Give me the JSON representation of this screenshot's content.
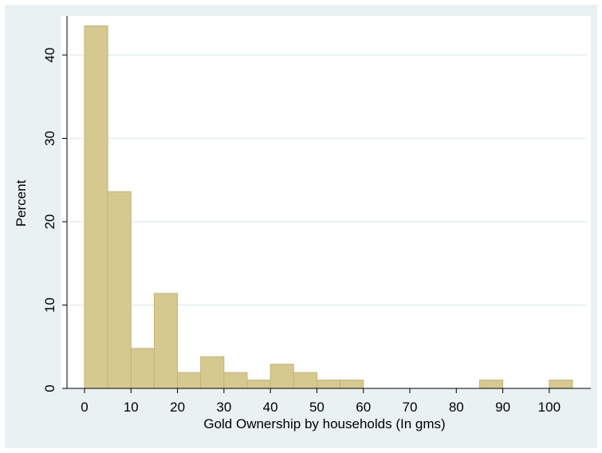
{
  "colors": {
    "outer_background": "#eaf1f3",
    "plot_background": "#ffffff",
    "bar_fill": "#d6c98f",
    "bar_stroke": "#c2b47a",
    "gridline": "#eaf1f3",
    "axis": "#000000"
  },
  "chart_data": {
    "type": "bar",
    "subtype": "histogram",
    "title": "",
    "xlabel": "Gold Ownership by households (In gms)",
    "ylabel": "Percent",
    "xlim": [
      -4,
      106
    ],
    "ylim": [
      0,
      44.5
    ],
    "xticks": [
      0,
      10,
      20,
      30,
      40,
      50,
      60,
      70,
      80,
      90,
      100
    ],
    "yticks": [
      0,
      10,
      20,
      30,
      40
    ],
    "grid": true,
    "legend": "none",
    "bin_width": 5,
    "bins": [
      {
        "start": 0,
        "end": 5,
        "value": 43.5
      },
      {
        "start": 5,
        "end": 10,
        "value": 23.6
      },
      {
        "start": 10,
        "end": 15,
        "value": 4.8
      },
      {
        "start": 15,
        "end": 20,
        "value": 11.4
      },
      {
        "start": 20,
        "end": 25,
        "value": 1.9
      },
      {
        "start": 25,
        "end": 30,
        "value": 3.8
      },
      {
        "start": 30,
        "end": 35,
        "value": 1.9
      },
      {
        "start": 35,
        "end": 40,
        "value": 1.0
      },
      {
        "start": 40,
        "end": 45,
        "value": 2.9
      },
      {
        "start": 45,
        "end": 50,
        "value": 1.9
      },
      {
        "start": 50,
        "end": 55,
        "value": 1.0
      },
      {
        "start": 55,
        "end": 60,
        "value": 1.0
      },
      {
        "start": 85,
        "end": 90,
        "value": 1.0
      },
      {
        "start": 100,
        "end": 105,
        "value": 1.0
      }
    ]
  }
}
